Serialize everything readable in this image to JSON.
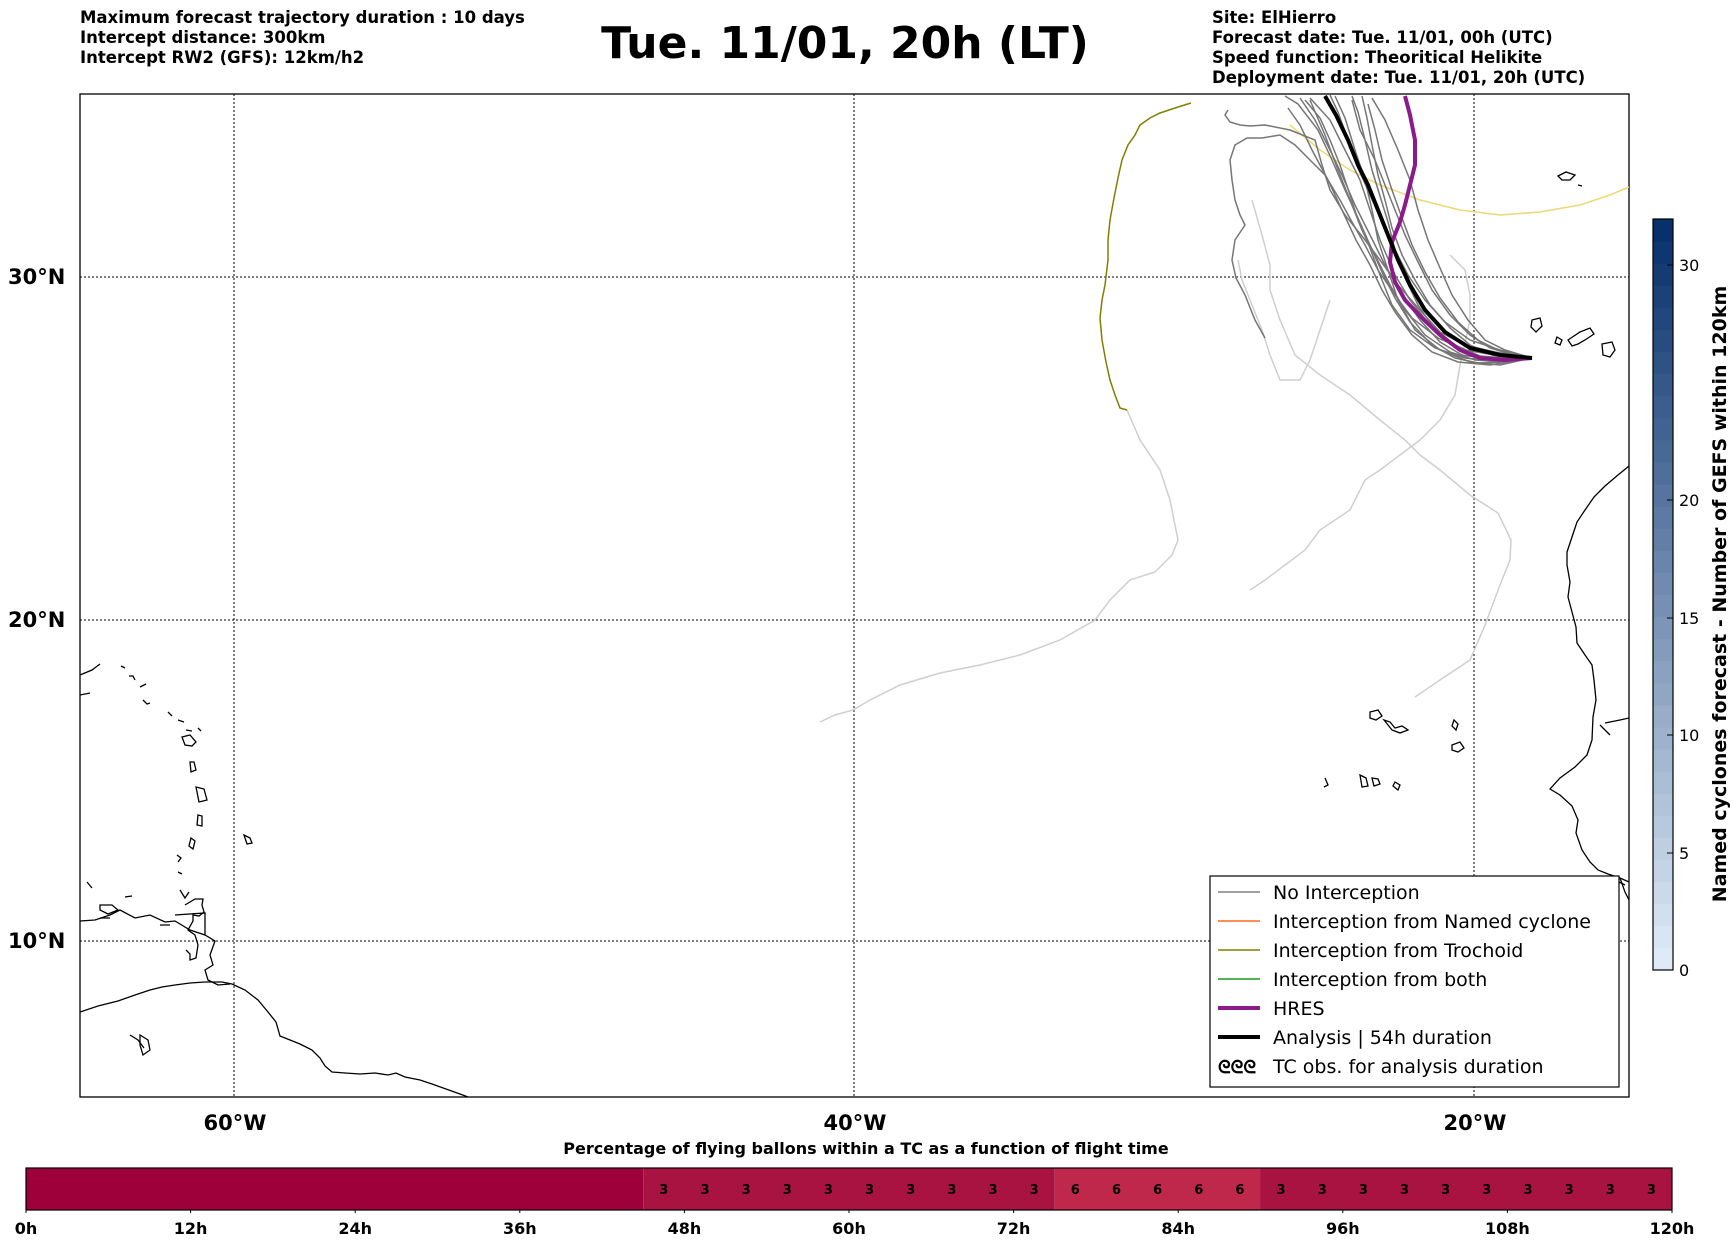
{
  "header": {
    "left_info": [
      "Maximum forecast trajectory duration : 10 days",
      "Intercept distance: 300km",
      "Intercept RW2 (GFS):  12km/h2"
    ],
    "title": "Tue. 11/01, 20h (LT)",
    "right_info": [
      "Site: ElHierro",
      "Forecast date: Tue. 11/01, 00h (UTC)",
      "Speed function: Theoritical Helikite",
      "Deployment date: Tue. 11/01, 20h (UTC)"
    ]
  },
  "map": {
    "lat_labels": [
      "30°N",
      "20°N",
      "10°N"
    ],
    "lon_labels": [
      "60°W",
      "40°W",
      "20°W"
    ],
    "colors": {
      "no_interception": "#808080",
      "named_cyclone": "#ff6a1e",
      "trochoid": "#808000",
      "both": "#1a9c1a",
      "hres": "#8b1a8b",
      "analysis": "#000000",
      "faded_track": "#cfcfcf",
      "yellow_track": "#e8d870"
    }
  },
  "legend": {
    "items": [
      "No Interception",
      "Interception from Named cyclone",
      "Interception from Trochoid",
      "Interception from both",
      "HRES",
      "Analysis | 54h duration",
      "TC obs. for analysis duration"
    ],
    "tc_symbol": "ᘓᘓᘓ"
  },
  "colorbar_right": {
    "label": "Named cyclones forecast - Number of GEFS within 120km",
    "ticks": [
      "30",
      "20",
      "15",
      "10",
      "5",
      "0"
    ]
  },
  "bottom_bar": {
    "title": "Percentage of flying ballons within a TC as a function of flight time",
    "time_labels": [
      "0h",
      "12h",
      "24h",
      "36h",
      "48h",
      "60h",
      "72h",
      "84h",
      "96h",
      "108h",
      "120h"
    ],
    "segments": [
      {
        "from_h": 0,
        "to_h": 45,
        "value": "",
        "color": "#9e0039"
      },
      {
        "from_h": 45,
        "to_h": 75,
        "value": "3",
        "color": "#a81342"
      },
      {
        "from_h": 75,
        "to_h": 90,
        "value": "6",
        "color": "#c0284b"
      },
      {
        "from_h": 90,
        "to_h": 120,
        "value": "3",
        "color": "#a81342"
      }
    ]
  }
}
